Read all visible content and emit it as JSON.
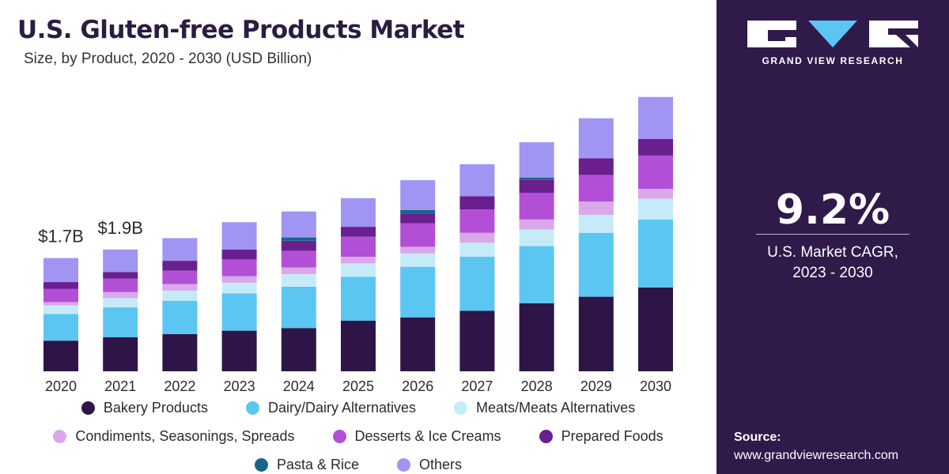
{
  "header": {
    "title": "U.S. Gluten-free Products Market",
    "subtitle": "Size, by Product, 2020 - 2030 (USD Billion)"
  },
  "brand": {
    "name": "GRAND VIEW RESEARCH",
    "logo_icon": "gvr-logo-icon"
  },
  "stat": {
    "value": "9.2%",
    "label_line1": "U.S. Market CAGR,",
    "label_line2": "2023 - 2030"
  },
  "source": {
    "label": "Source:",
    "url": "www.grandviewresearch.com"
  },
  "colors": {
    "sidebar_bg": "#2f1a4a",
    "title": "#2b1c42"
  },
  "chart_data": {
    "type": "bar",
    "stacked": true,
    "title": "U.S. Gluten-free Products Market",
    "subtitle": "Size, by Product, 2020 - 2030 (USD Billion)",
    "xlabel": "",
    "ylabel": "",
    "ylim": [
      0,
      4.2
    ],
    "grid": false,
    "legend_position": "bottom",
    "categories": [
      "2020",
      "2021",
      "2022",
      "2023",
      "2024",
      "2025",
      "2026",
      "2027",
      "2028",
      "2029",
      "2030"
    ],
    "series": [
      {
        "name": "Bakery Products",
        "color": "#2e1548",
        "values": [
          0.46,
          0.51,
          0.56,
          0.61,
          0.65,
          0.76,
          0.81,
          0.91,
          1.02,
          1.12,
          1.26
        ]
      },
      {
        "name": "Dairy/Dairy Alternatives",
        "color": "#5bc6f2",
        "values": [
          0.4,
          0.45,
          0.5,
          0.56,
          0.62,
          0.66,
          0.76,
          0.81,
          0.86,
          0.96,
          1.02
        ]
      },
      {
        "name": "Meats/Meats Alternatives",
        "color": "#c6ebf8",
        "values": [
          0.13,
          0.14,
          0.15,
          0.16,
          0.19,
          0.2,
          0.2,
          0.21,
          0.25,
          0.27,
          0.31
        ]
      },
      {
        "name": "Condiments, Seasonings, Spreads",
        "color": "#d9a8ea",
        "values": [
          0.05,
          0.09,
          0.1,
          0.1,
          0.1,
          0.1,
          0.1,
          0.15,
          0.15,
          0.2,
          0.15
        ]
      },
      {
        "name": "Desserts & Ice Creams",
        "color": "#b34fd6",
        "values": [
          0.2,
          0.2,
          0.2,
          0.25,
          0.25,
          0.3,
          0.35,
          0.35,
          0.4,
          0.4,
          0.5
        ]
      },
      {
        "name": "Prepared Foods",
        "color": "#6a1f8e",
        "values": [
          0.1,
          0.1,
          0.15,
          0.15,
          0.15,
          0.15,
          0.15,
          0.2,
          0.2,
          0.25,
          0.25
        ]
      },
      {
        "name": "Pasta & Rice",
        "color": "#17658a",
        "values": [
          0.0,
          0.0,
          0.0,
          0.0,
          0.05,
          0.0,
          0.05,
          0.0,
          0.03,
          0.0,
          0.0
        ]
      },
      {
        "name": "Others",
        "color": "#a095f2",
        "values": [
          0.36,
          0.34,
          0.34,
          0.41,
          0.39,
          0.43,
          0.45,
          0.48,
          0.53,
          0.6,
          0.63
        ]
      }
    ],
    "annotations": [
      {
        "category": "2020",
        "text": "$1.7B"
      },
      {
        "category": "2021",
        "text": "$1.9B"
      }
    ]
  }
}
